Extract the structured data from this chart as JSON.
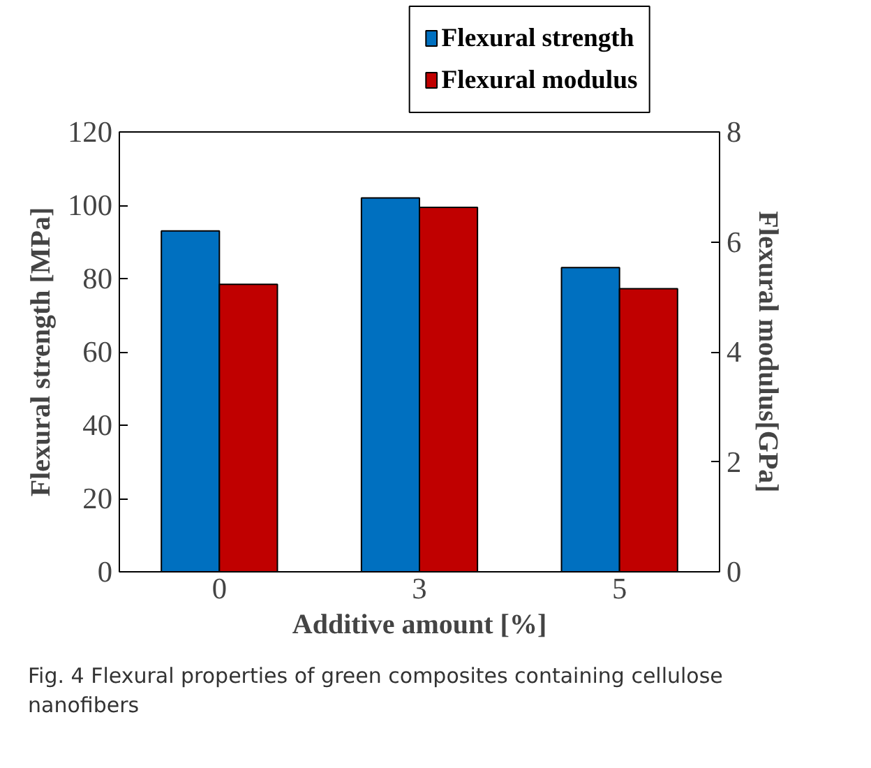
{
  "chart_data": {
    "type": "bar",
    "categories": [
      "0",
      "3",
      "5"
    ],
    "series": [
      {
        "name": "Flexural strength",
        "color": "#0070c0",
        "values": [
          93,
          102,
          83
        ]
      },
      {
        "name": "Flexural modulus",
        "color": "#c00000",
        "values": [
          5.23,
          6.63,
          5.15
        ],
        "axis": "y2"
      }
    ],
    "xlabel": "Additive amount [%]",
    "ylabel": "Flexural strength [MPa]",
    "y2label": "Flexural modulus[GPa]",
    "ylim": [
      0,
      120
    ],
    "yticks": [
      0,
      20,
      40,
      60,
      80,
      100,
      120
    ],
    "y2lim": [
      0,
      8
    ],
    "y2ticks": [
      0,
      2,
      4,
      6,
      8
    ],
    "legend": "top",
    "grid": false,
    "annotations": [
      "Fig. 4  Flexural properties of green composites containing cellulose nanofibers"
    ]
  }
}
